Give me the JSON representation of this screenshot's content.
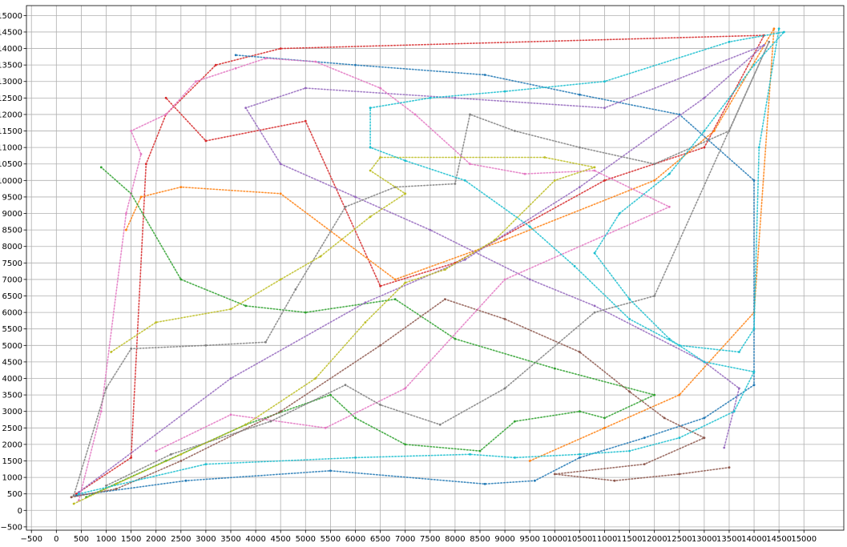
{
  "chart_data": {
    "type": "scatter",
    "title": "",
    "xlabel": "",
    "ylabel": "",
    "xlim": [
      -600,
      15800
    ],
    "ylim": [
      -600,
      15300
    ],
    "grid": true,
    "legend": "none",
    "xticks": [
      -500,
      0,
      500,
      1000,
      1500,
      2000,
      2500,
      3000,
      3500,
      4000,
      4500,
      5000,
      5500,
      6000,
      6500,
      7000,
      7500,
      8000,
      8500,
      9000,
      9500,
      10000,
      10500,
      11000,
      11500,
      12000,
      12500,
      13000,
      13500,
      14000,
      14500,
      15000
    ],
    "yticks": [
      -500,
      0,
      500,
      1000,
      1500,
      2000,
      2500,
      3000,
      3500,
      4000,
      4500,
      5000,
      5500,
      6000,
      6500,
      7000,
      7500,
      8000,
      8500,
      9000,
      9500,
      10000,
      10500,
      11000,
      11500,
      12000,
      12500,
      13000,
      13500,
      14000,
      14500,
      15000
    ],
    "series": [
      {
        "color": "#d62728",
        "points": [
          [
            400,
            500
          ],
          [
            1500,
            1600
          ],
          [
            1800,
            10500
          ],
          [
            2200,
            12000
          ],
          [
            3200,
            13500
          ],
          [
            4500,
            14000
          ],
          [
            14200,
            14400
          ],
          [
            13000,
            11000
          ],
          [
            11000,
            10000
          ],
          [
            8000,
            7500
          ],
          [
            6500,
            6800
          ],
          [
            5000,
            11800
          ],
          [
            3000,
            11200
          ],
          [
            2200,
            12500
          ]
        ]
      },
      {
        "color": "#ff7f0e",
        "points": [
          [
            1400,
            8500
          ],
          [
            1700,
            9500
          ],
          [
            2500,
            9800
          ],
          [
            4500,
            9600
          ],
          [
            6800,
            7000
          ],
          [
            9000,
            8200
          ],
          [
            12000,
            10000
          ],
          [
            13200,
            11500
          ],
          [
            14400,
            14600
          ],
          [
            14000,
            6000
          ],
          [
            12500,
            3500
          ],
          [
            11000,
            2500
          ],
          [
            9500,
            1500
          ]
        ]
      },
      {
        "color": "#2ca02c",
        "points": [
          [
            600,
            400
          ],
          [
            2200,
            1500
          ],
          [
            3800,
            2600
          ],
          [
            5500,
            3500
          ],
          [
            6000,
            2800
          ],
          [
            7000,
            2000
          ],
          [
            8500,
            1800
          ],
          [
            9200,
            2700
          ],
          [
            10500,
            3000
          ],
          [
            11000,
            2800
          ],
          [
            12000,
            3500
          ],
          [
            10000,
            4300
          ],
          [
            8000,
            5200
          ],
          [
            6800,
            6400
          ],
          [
            5000,
            6000
          ],
          [
            3800,
            6200
          ],
          [
            2500,
            7000
          ],
          [
            1500,
            9600
          ],
          [
            900,
            10400
          ]
        ]
      },
      {
        "color": "#1f77b4",
        "points": [
          [
            400,
            450
          ],
          [
            2600,
            900
          ],
          [
            5500,
            1200
          ],
          [
            8600,
            800
          ],
          [
            9600,
            900
          ],
          [
            10500,
            1600
          ],
          [
            11800,
            2200
          ],
          [
            13000,
            2800
          ],
          [
            14000,
            3800
          ],
          [
            14000,
            10000
          ],
          [
            12500,
            12000
          ],
          [
            10500,
            12600
          ],
          [
            8600,
            13200
          ],
          [
            6000,
            13500
          ],
          [
            3600,
            13800
          ]
        ]
      },
      {
        "color": "#9467bd",
        "points": [
          [
            450,
            550
          ],
          [
            3500,
            4000
          ],
          [
            6200,
            6300
          ],
          [
            8200,
            7600
          ],
          [
            10500,
            9800
          ],
          [
            13000,
            12500
          ],
          [
            14200,
            14100
          ],
          [
            11000,
            12200
          ],
          [
            8000,
            12500
          ],
          [
            5000,
            12800
          ],
          [
            3800,
            12200
          ],
          [
            4500,
            10500
          ],
          [
            6000,
            9500
          ],
          [
            7500,
            8500
          ],
          [
            9500,
            7000
          ],
          [
            10800,
            6200
          ],
          [
            13000,
            4500
          ],
          [
            13700,
            3700
          ],
          [
            13400,
            1900
          ]
        ]
      },
      {
        "color": "#8c564b",
        "points": [
          [
            300,
            400
          ],
          [
            1200,
            650
          ],
          [
            2500,
            1500
          ],
          [
            4500,
            3000
          ],
          [
            6500,
            5000
          ],
          [
            7800,
            6400
          ],
          [
            9000,
            5800
          ],
          [
            10500,
            4800
          ],
          [
            11500,
            3600
          ],
          [
            12200,
            2800
          ],
          [
            13000,
            2200
          ],
          [
            11800,
            1400
          ],
          [
            10000,
            1100
          ],
          [
            11200,
            900
          ],
          [
            12500,
            1100
          ],
          [
            13500,
            1300
          ]
        ]
      },
      {
        "color": "#e377c2",
        "points": [
          [
            450,
            300
          ],
          [
            900,
            3000
          ],
          [
            1400,
            9000
          ],
          [
            1700,
            10800
          ],
          [
            1500,
            11500
          ],
          [
            2200,
            12000
          ],
          [
            2800,
            13000
          ],
          [
            3600,
            13400
          ],
          [
            4200,
            13700
          ],
          [
            5200,
            13600
          ],
          [
            6500,
            12800
          ],
          [
            7200,
            12000
          ],
          [
            8300,
            10500
          ],
          [
            9400,
            10200
          ],
          [
            10800,
            10300
          ],
          [
            12300,
            9200
          ],
          [
            9000,
            7000
          ],
          [
            7000,
            3700
          ],
          [
            5400,
            2500
          ],
          [
            3500,
            2900
          ],
          [
            2000,
            1800
          ]
        ]
      },
      {
        "color": "#7f7f7f",
        "points": [
          [
            350,
            450
          ],
          [
            1000,
            3700
          ],
          [
            1500,
            4900
          ],
          [
            3000,
            5000
          ],
          [
            4200,
            5100
          ],
          [
            4800,
            6700
          ],
          [
            5800,
            9200
          ],
          [
            6800,
            9800
          ],
          [
            8000,
            9900
          ],
          [
            8300,
            12000
          ],
          [
            9200,
            11500
          ],
          [
            10500,
            11000
          ],
          [
            12000,
            10500
          ],
          [
            13500,
            11500
          ],
          [
            14300,
            14200
          ],
          [
            12000,
            6500
          ],
          [
            10800,
            6000
          ],
          [
            9000,
            3700
          ],
          [
            7700,
            2600
          ],
          [
            6500,
            3200
          ],
          [
            5800,
            3800
          ],
          [
            4300,
            2700
          ],
          [
            2300,
            1700
          ],
          [
            1000,
            750
          ]
        ]
      },
      {
        "color": "#bcbd22",
        "points": [
          [
            350,
            200
          ],
          [
            1200,
            800
          ],
          [
            2500,
            1700
          ],
          [
            3800,
            2600
          ],
          [
            5200,
            4000
          ],
          [
            6200,
            5700
          ],
          [
            7000,
            6900
          ],
          [
            7800,
            7300
          ],
          [
            8800,
            8200
          ],
          [
            10000,
            10000
          ],
          [
            10800,
            10400
          ],
          [
            9800,
            10700
          ],
          [
            8000,
            10700
          ],
          [
            6500,
            10700
          ],
          [
            6300,
            10300
          ],
          [
            7000,
            9600
          ],
          [
            6300,
            8900
          ],
          [
            5300,
            7700
          ],
          [
            4500,
            7000
          ],
          [
            3500,
            6100
          ],
          [
            2000,
            5700
          ],
          [
            1100,
            4800
          ]
        ]
      },
      {
        "color": "#17becf",
        "points": [
          [
            450,
            500
          ],
          [
            3000,
            1400
          ],
          [
            6000,
            1600
          ],
          [
            8300,
            1700
          ],
          [
            9200,
            1600
          ],
          [
            10500,
            1700
          ],
          [
            11500,
            1800
          ],
          [
            12500,
            2200
          ],
          [
            13600,
            3000
          ],
          [
            14000,
            4200
          ],
          [
            13000,
            4500
          ],
          [
            12300,
            5200
          ],
          [
            11500,
            6400
          ],
          [
            10800,
            7800
          ],
          [
            11300,
            9000
          ],
          [
            12300,
            10200
          ],
          [
            13000,
            11500
          ],
          [
            14000,
            13500
          ],
          [
            14600,
            14500
          ],
          [
            13500,
            14200
          ],
          [
            11000,
            13000
          ],
          [
            9000,
            12700
          ],
          [
            7500,
            12500
          ],
          [
            6300,
            12200
          ],
          [
            6300,
            11000
          ],
          [
            7000,
            10600
          ],
          [
            8200,
            10000
          ],
          [
            9500,
            8600
          ],
          [
            10400,
            7400
          ],
          [
            11500,
            5800
          ],
          [
            12500,
            5000
          ],
          [
            13700,
            4800
          ],
          [
            14000,
            5500
          ],
          [
            14100,
            11000
          ],
          [
            14500,
            14600
          ]
        ]
      }
    ]
  }
}
